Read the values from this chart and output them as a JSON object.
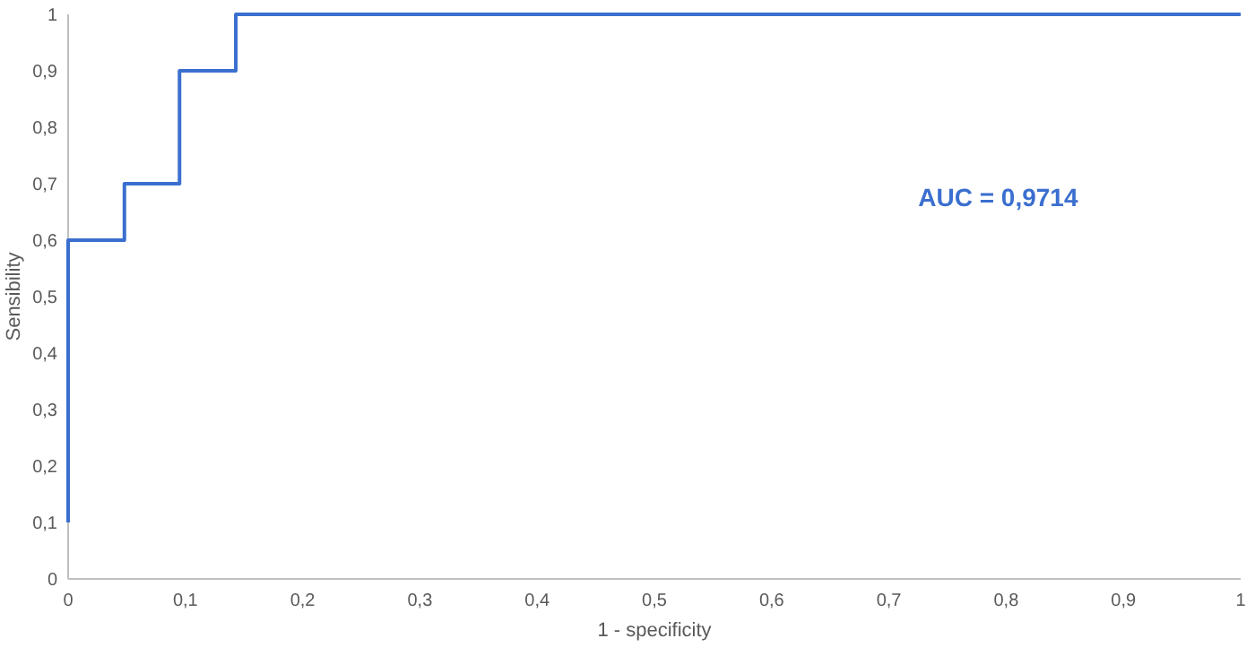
{
  "chart_data": {
    "type": "step",
    "xlabel": "1 - specificity",
    "ylabel": "Sensibility",
    "x": [
      0,
      0,
      0.048,
      0.095,
      0.143,
      1
    ],
    "series": [
      {
        "color": "#3b6fcf",
        "values": [
          0.1,
          0.6,
          0.7,
          0.9,
          1,
          1
        ]
      }
    ],
    "xlim": [
      0,
      1
    ],
    "xticks": [
      0,
      {
        "value": 0.1,
        "label": "0,1"
      },
      {
        "value": 0.2,
        "label": "0,2"
      },
      {
        "value": 0.3,
        "label": "0,3"
      },
      {
        "value": 0.4,
        "label": "0,4"
      },
      {
        "value": 0.5,
        "label": "0,5"
      },
      {
        "value": 0.6,
        "label": "0,6"
      },
      {
        "value": 0.7,
        "label": "0,7"
      },
      {
        "value": 0.8,
        "label": "0,8"
      },
      {
        "value": 0.9,
        "label": "0,9"
      },
      1
    ],
    "ylim": [
      0,
      1
    ],
    "yticks": [
      0,
      {
        "value": 0.1,
        "label": "0,1"
      },
      {
        "value": 0.2,
        "label": "0,2"
      },
      {
        "value": 0.3,
        "label": "0,3"
      },
      {
        "value": 0.4,
        "label": "0,4"
      },
      {
        "value": 0.5,
        "label": "0,5"
      },
      {
        "value": 0.6,
        "label": "0,6"
      },
      {
        "value": 0.7,
        "label": "0,7"
      },
      {
        "value": 0.8,
        "label": "0,8"
      },
      {
        "value": 0.9,
        "label": "0,9"
      },
      1
    ],
    "annotations": [
      "AUC = 0,9714"
    ],
    "grid": false
  }
}
